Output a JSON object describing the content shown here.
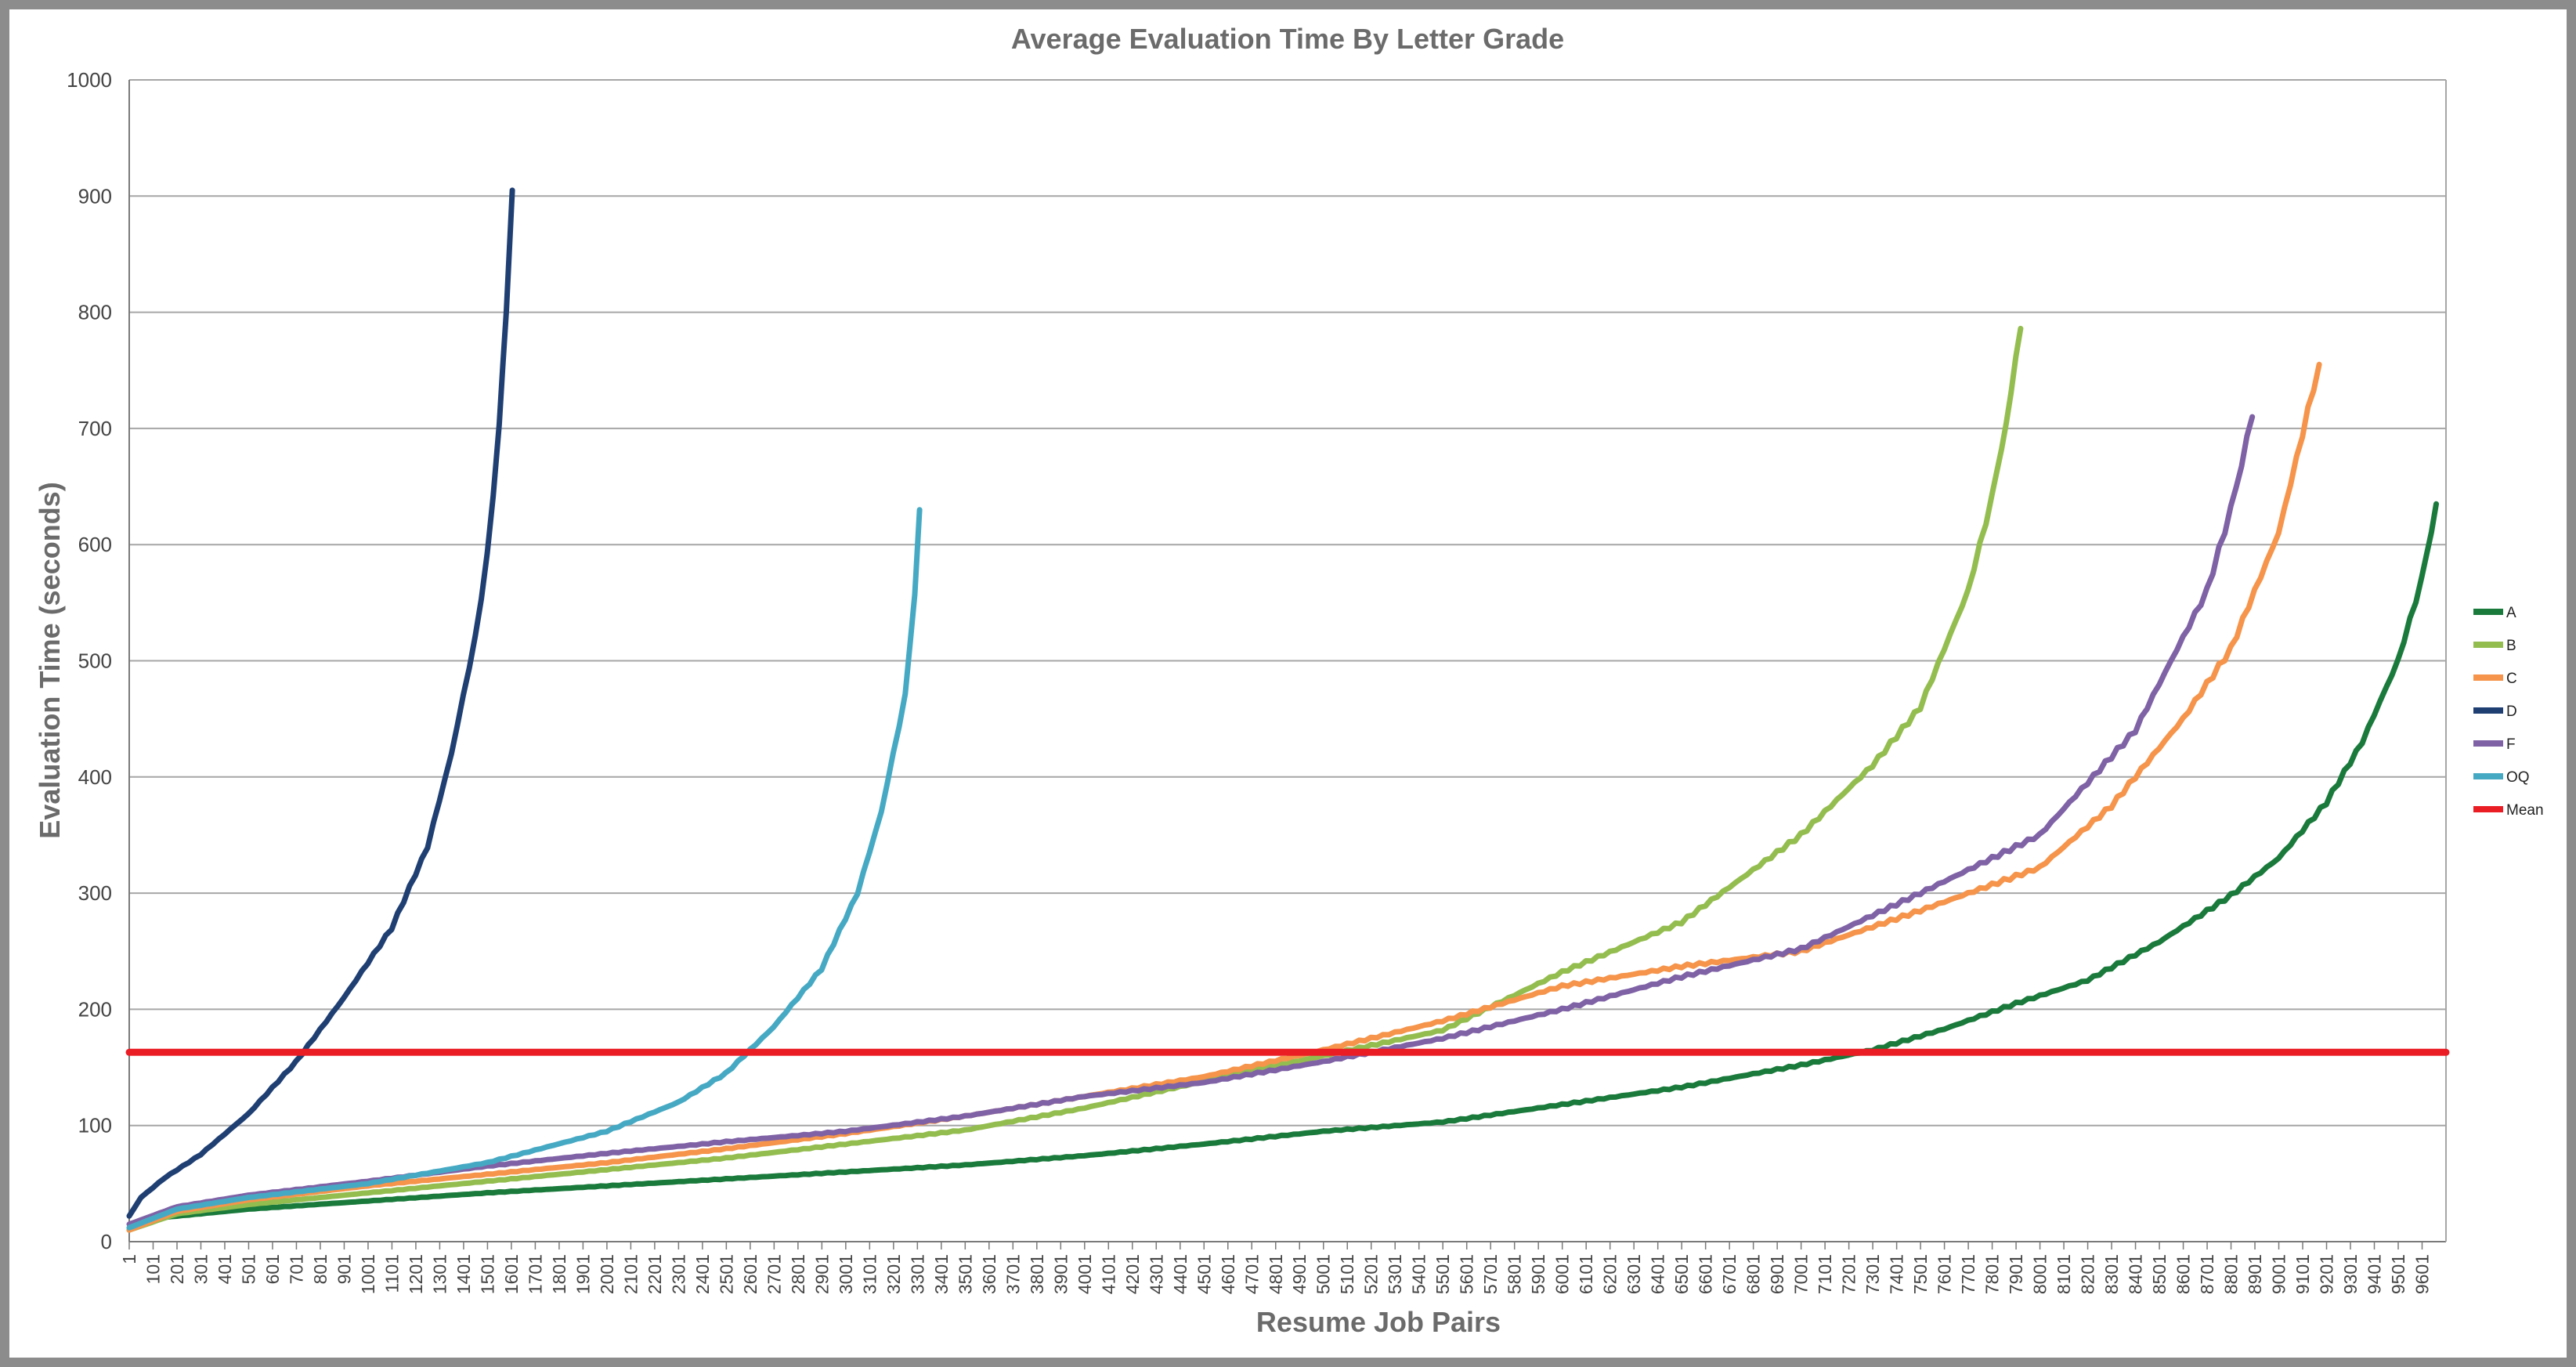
{
  "chart_data": {
    "type": "line",
    "title": "Average Evaluation Time By Letter Grade",
    "xlabel": "Resume Job Pairs",
    "ylabel": "Evaluation Time (seconds)",
    "xlim": [
      1,
      9701
    ],
    "ylim": [
      0,
      1000
    ],
    "yticks": [
      0,
      100,
      200,
      300,
      400,
      500,
      600,
      700,
      800,
      900,
      1000
    ],
    "xtick_start": 1,
    "xtick_step": 100,
    "xtick_end": 9601,
    "grid": "horizontal",
    "legend_position": "right",
    "series": [
      {
        "name": "A",
        "color": "#1a7a3c",
        "points": [
          [
            1,
            10
          ],
          [
            100,
            20
          ],
          [
            500,
            28
          ],
          [
            1000,
            35
          ],
          [
            1500,
            42
          ],
          [
            2000,
            48
          ],
          [
            2500,
            54
          ],
          [
            3000,
            60
          ],
          [
            3500,
            66
          ],
          [
            4000,
            74
          ],
          [
            4500,
            84
          ],
          [
            5000,
            95
          ],
          [
            5500,
            103
          ],
          [
            6000,
            118
          ],
          [
            6500,
            133
          ],
          [
            7000,
            152
          ],
          [
            7300,
            165
          ],
          [
            7600,
            183
          ],
          [
            7900,
            205
          ],
          [
            8200,
            225
          ],
          [
            8500,
            258
          ],
          [
            8800,
            298
          ],
          [
            9000,
            330
          ],
          [
            9200,
            378
          ],
          [
            9350,
            430
          ],
          [
            9500,
            500
          ],
          [
            9600,
            570
          ],
          [
            9660,
            635
          ]
        ]
      },
      {
        "name": "B",
        "color": "#94bd4f",
        "points": [
          [
            1,
            10
          ],
          [
            200,
            24
          ],
          [
            500,
            32
          ],
          [
            1000,
            42
          ],
          [
            1500,
            52
          ],
          [
            2000,
            62
          ],
          [
            2500,
            72
          ],
          [
            3000,
            84
          ],
          [
            3500,
            96
          ],
          [
            4000,
            115
          ],
          [
            4500,
            138
          ],
          [
            5000,
            160
          ],
          [
            5500,
            182
          ],
          [
            6000,
            232
          ],
          [
            6500,
            275
          ],
          [
            7000,
            350
          ],
          [
            7300,
            410
          ],
          [
            7500,
            460
          ],
          [
            7700,
            560
          ],
          [
            7800,
            640
          ],
          [
            7880,
            730
          ],
          [
            7920,
            786
          ]
        ]
      },
      {
        "name": "C",
        "color": "#f5944a",
        "points": [
          [
            1,
            10
          ],
          [
            200,
            26
          ],
          [
            500,
            36
          ],
          [
            1000,
            48
          ],
          [
            1500,
            58
          ],
          [
            2000,
            68
          ],
          [
            2500,
            80
          ],
          [
            3000,
            93
          ],
          [
            3500,
            108
          ],
          [
            4000,
            125
          ],
          [
            4500,
            142
          ],
          [
            5000,
            165
          ],
          [
            5500,
            190
          ],
          [
            6000,
            220
          ],
          [
            6500,
            237
          ],
          [
            7000,
            250
          ],
          [
            7500,
            285
          ],
          [
            8000,
            322
          ],
          [
            8300,
            375
          ],
          [
            8600,
            450
          ],
          [
            8800,
            510
          ],
          [
            9000,
            610
          ],
          [
            9100,
            695
          ],
          [
            9170,
            755
          ]
        ]
      },
      {
        "name": "D",
        "color": "#1f3f73",
        "points": [
          [
            1,
            22
          ],
          [
            50,
            38
          ],
          [
            150,
            55
          ],
          [
            300,
            75
          ],
          [
            500,
            110
          ],
          [
            700,
            155
          ],
          [
            900,
            210
          ],
          [
            1100,
            270
          ],
          [
            1250,
            340
          ],
          [
            1350,
            420
          ],
          [
            1450,
            520
          ],
          [
            1500,
            590
          ],
          [
            1550,
            700
          ],
          [
            1580,
            800
          ],
          [
            1605,
            905
          ]
        ]
      },
      {
        "name": "F",
        "color": "#7f62a6",
        "points": [
          [
            1,
            15
          ],
          [
            200,
            30
          ],
          [
            500,
            40
          ],
          [
            1000,
            52
          ],
          [
            1500,
            65
          ],
          [
            2000,
            76
          ],
          [
            2500,
            86
          ],
          [
            3000,
            95
          ],
          [
            3500,
            108
          ],
          [
            4000,
            125
          ],
          [
            4500,
            137
          ],
          [
            5000,
            155
          ],
          [
            5500,
            175
          ],
          [
            6000,
            200
          ],
          [
            6500,
            228
          ],
          [
            7000,
            252
          ],
          [
            7500,
            300
          ],
          [
            8000,
            350
          ],
          [
            8400,
            440
          ],
          [
            8700,
            560
          ],
          [
            8800,
            630
          ],
          [
            8890,
            710
          ]
        ]
      },
      {
        "name": "OQ",
        "color": "#46a9c4",
        "points": [
          [
            1,
            12
          ],
          [
            200,
            28
          ],
          [
            500,
            38
          ],
          [
            1000,
            50
          ],
          [
            1500,
            68
          ],
          [
            2000,
            95
          ],
          [
            2300,
            120
          ],
          [
            2500,
            145
          ],
          [
            2700,
            185
          ],
          [
            2900,
            235
          ],
          [
            3050,
            300
          ],
          [
            3150,
            370
          ],
          [
            3250,
            470
          ],
          [
            3290,
            560
          ],
          [
            3310,
            630
          ]
        ]
      },
      {
        "name": "Mean",
        "color": "#ea1c24",
        "points": [
          [
            1,
            163
          ],
          [
            9701,
            163
          ]
        ]
      }
    ]
  }
}
